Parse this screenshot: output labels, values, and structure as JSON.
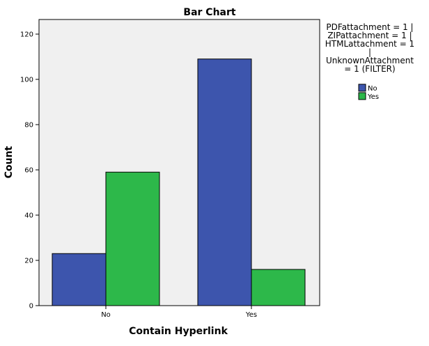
{
  "chart_data": {
    "type": "bar",
    "title": "Bar Chart",
    "xlabel": "Contain Hyperlink",
    "ylabel": "Count",
    "categories": [
      "No",
      "Yes"
    ],
    "ylim": [
      0,
      125
    ],
    "yticks": [
      0,
      20,
      40,
      60,
      80,
      100,
      120
    ],
    "grid": false,
    "legend_position": "right",
    "legend_title_lines": [
      "PDFattachment = 1 |",
      "ZIPattachment = 1 |",
      "HTMLattachment = 1",
      "|",
      "UnknownAttachment",
      "= 1 (FILTER)"
    ],
    "series": [
      {
        "name": "No",
        "values": [
          23,
          109
        ],
        "color": "#3D55AD"
      },
      {
        "name": "Yes",
        "values": [
          59,
          16
        ],
        "color": "#2DB84A"
      }
    ],
    "plot_background": "#F0F0F0"
  }
}
